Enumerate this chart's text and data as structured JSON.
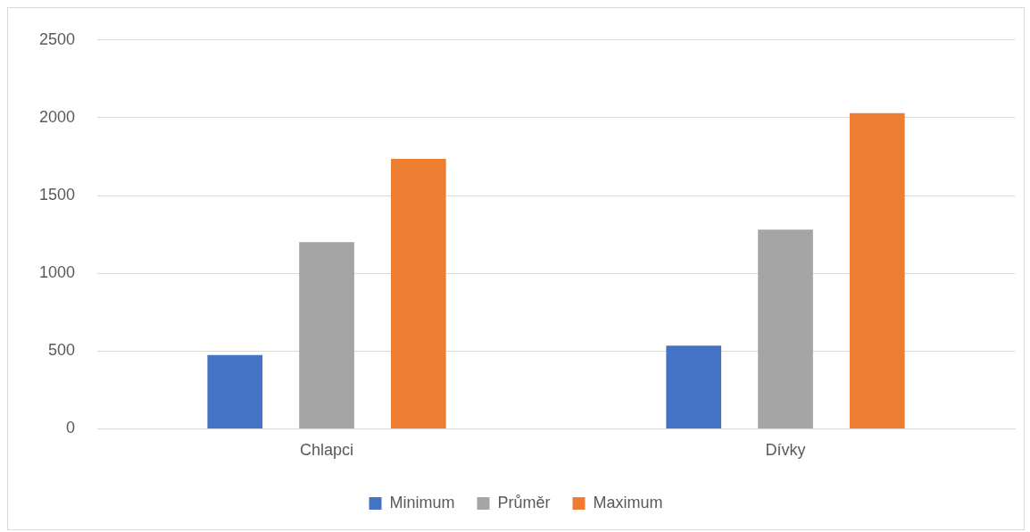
{
  "chart_data": {
    "type": "bar",
    "categories": [
      "Chlapci",
      "Dívky"
    ],
    "series": [
      {
        "name": "Minimum",
        "color": "#4472c4",
        "values": [
          475,
          535
        ]
      },
      {
        "name": "Průměr",
        "color": "#a5a5a5",
        "values": [
          1200,
          1280
        ]
      },
      {
        "name": "Maximum",
        "color": "#ed7d31",
        "values": [
          1735,
          2030
        ]
      }
    ],
    "ylim": [
      0,
      2500
    ],
    "yticks": [
      0,
      500,
      1000,
      1500,
      2000,
      2500
    ],
    "grid": "y",
    "legend": "bottom"
  }
}
